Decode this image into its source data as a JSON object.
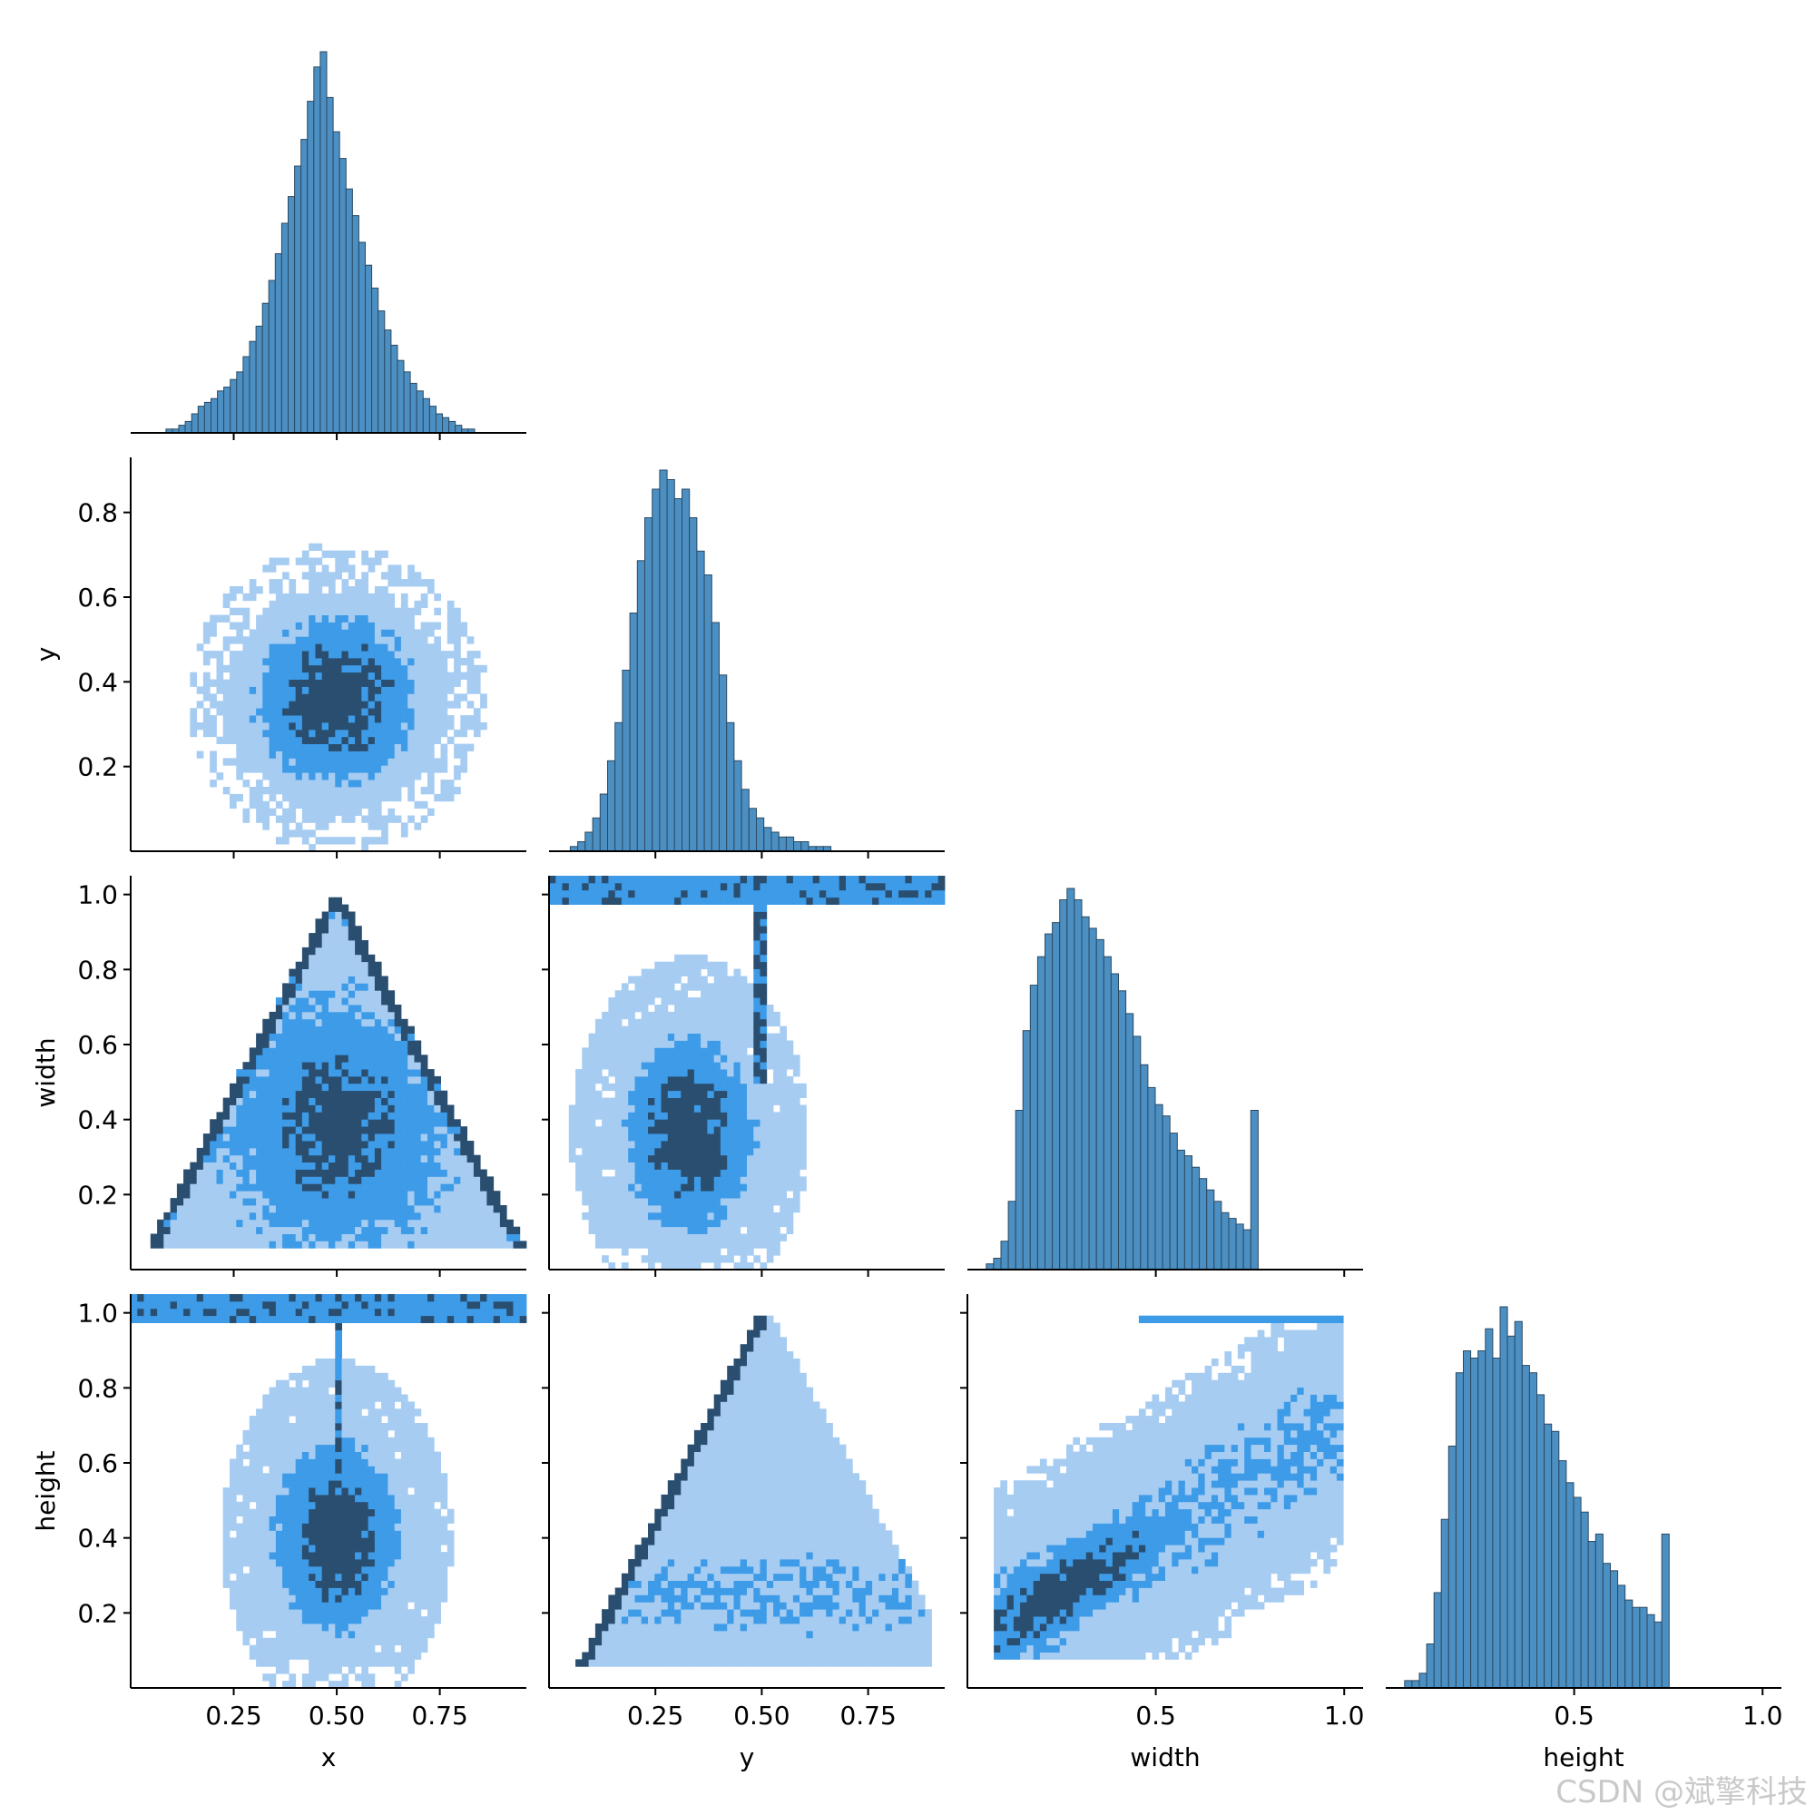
{
  "watermark": "CSDN @斌擎科技",
  "colors": {
    "bar_fill": "#4c8fc2",
    "bar_edge": "#2b4a63",
    "heat_light": "#a6ccf2",
    "heat_mid": "#3d9be8",
    "heat_dark": "#2a4e6f",
    "axis": "#000000"
  },
  "chart_data": {
    "type": "pairplot",
    "variables": [
      "x",
      "y",
      "width",
      "height"
    ],
    "axis_labels": {
      "x": "x",
      "y": "y",
      "width": "width",
      "height": "height"
    },
    "ticks": {
      "x": {
        "range": [
          0.0,
          0.96
        ],
        "ticks": [
          0.25,
          0.5,
          0.75
        ],
        "labels": [
          "0.25",
          "0.50",
          "0.75"
        ]
      },
      "y": {
        "range": [
          0.0,
          0.93
        ],
        "ticks": [
          0.2,
          0.4,
          0.6,
          0.8
        ],
        "labels": [
          "0.2",
          "0.4",
          "0.6",
          "0.8"
        ],
        "xticks": [
          0.25,
          0.5,
          0.75
        ],
        "xlabels": [
          "0.25",
          "0.50",
          "0.75"
        ]
      },
      "width": {
        "range": [
          0.0,
          1.05
        ],
        "ticks": [
          0.2,
          0.4,
          0.6,
          0.8,
          1.0
        ],
        "labels": [
          "0.2",
          "0.4",
          "0.6",
          "0.8",
          "1.0"
        ],
        "xticks": [
          0.5,
          1.0
        ],
        "xlabels": [
          "0.5",
          "1.0"
        ]
      },
      "height": {
        "range": [
          0.0,
          1.05
        ],
        "ticks": [
          0.2,
          0.4,
          0.6,
          0.8,
          1.0
        ],
        "labels": [
          "0.2",
          "0.4",
          "0.6",
          "0.8",
          "1.0"
        ],
        "xticks": [
          0.5,
          1.0
        ],
        "xlabels": [
          "0.5",
          "1.0"
        ]
      }
    },
    "histograms": {
      "x": {
        "bin_start": 0.07,
        "bin_width": 0.0156,
        "counts": [
          0,
          1,
          1,
          2,
          3,
          5,
          7,
          8,
          9,
          11,
          12,
          14,
          16,
          20,
          24,
          28,
          34,
          40,
          47,
          55,
          62,
          70,
          77,
          87,
          96,
          100,
          88,
          79,
          72,
          64,
          57,
          50,
          44,
          38,
          32,
          27,
          23,
          19,
          16,
          13,
          11,
          9,
          7,
          5,
          4,
          3,
          2,
          1,
          1,
          0,
          0
        ]
      },
      "y": {
        "bin_start": 0.05,
        "bin_width": 0.0175,
        "counts": [
          1,
          2,
          4,
          7,
          12,
          19,
          27,
          38,
          50,
          61,
          70,
          76,
          80,
          78,
          74,
          76,
          70,
          63,
          58,
          48,
          37,
          27,
          19,
          13,
          9,
          7,
          5,
          4,
          3,
          3,
          2,
          2,
          1,
          1,
          1,
          0,
          0,
          0,
          0,
          0
        ]
      },
      "width": {
        "bin_start": 0.05,
        "bin_width": 0.0195,
        "counts": [
          1,
          2,
          5,
          12,
          28,
          42,
          50,
          55,
          59,
          61,
          65,
          67,
          65,
          62,
          60,
          58,
          55,
          52,
          49,
          45,
          41,
          36,
          32,
          29,
          27,
          24,
          21,
          20,
          18,
          16,
          14,
          12,
          10,
          9,
          8,
          7,
          28
        ]
      },
      "height": {
        "bin_start": 0.05,
        "bin_width": 0.0195,
        "counts": [
          1,
          1,
          2,
          6,
          13,
          23,
          33,
          43,
          46,
          45,
          46,
          49,
          45,
          52,
          48,
          50,
          44,
          43,
          40,
          36,
          35,
          31,
          28,
          26,
          24,
          20,
          21,
          17,
          16,
          14,
          12,
          11,
          11,
          10,
          9,
          21
        ]
      }
    },
    "heatmaps": [
      {
        "row": "y",
        "col": "x",
        "shape": "gaussian",
        "center": [
          0.5,
          0.36
        ],
        "spread": [
          0.13,
          0.13
        ]
      },
      {
        "row": "width",
        "col": "x",
        "shape": "triangle",
        "apex": [
          0.5,
          1.0
        ],
        "base": [
          0.07,
          0.93
        ]
      },
      {
        "row": "width",
        "col": "y",
        "shape": "cluster_vline",
        "center": [
          0.33,
          0.36
        ],
        "vline_at": 0.5
      },
      {
        "row": "height",
        "col": "x",
        "shape": "cluster_vline",
        "center": [
          0.5,
          0.4
        ],
        "vline_at": 0.5
      },
      {
        "row": "height",
        "col": "y",
        "shape": "left_edge_triangle",
        "apex": [
          0.5,
          1.0
        ],
        "base": [
          0.07,
          0.88
        ]
      },
      {
        "row": "height",
        "col": "width",
        "shape": "diagonal",
        "from": [
          0.15,
          0.2
        ],
        "to": [
          1.0,
          1.0
        ]
      }
    ],
    "grid": false,
    "legend": "none"
  }
}
